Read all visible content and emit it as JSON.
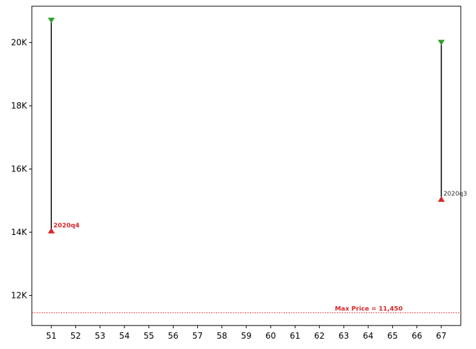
{
  "chart_data": {
    "type": "range",
    "x_ticks": [
      51,
      52,
      53,
      54,
      55,
      56,
      57,
      58,
      59,
      60,
      61,
      62,
      63,
      64,
      65,
      66,
      67
    ],
    "xlim": [
      50.2,
      67.8
    ],
    "ylim": [
      11050,
      21150
    ],
    "y_ticks": [
      12000,
      14000,
      16000,
      18000,
      20000
    ],
    "y_tick_labels": [
      "12K",
      "14K",
      "16K",
      "18K",
      "20K"
    ],
    "ranges": [
      {
        "x": 51,
        "high": 20700,
        "low": 14050,
        "label": "2020q4",
        "label_color": "#d62728",
        "label_bold": true
      },
      {
        "x": 67,
        "high": 20000,
        "low": 15050,
        "label": "2020q3",
        "label_color": "#333333",
        "label_bold": false
      }
    ],
    "reference_line": {
      "y": 11450,
      "label": "Max Price = 11,450",
      "color": "#d62728"
    },
    "colors": {
      "high_marker": "#2ca02c",
      "low_marker": "#d62728",
      "range_line": "#000000"
    },
    "grid": false,
    "title": "",
    "xlabel": "",
    "ylabel": ""
  }
}
